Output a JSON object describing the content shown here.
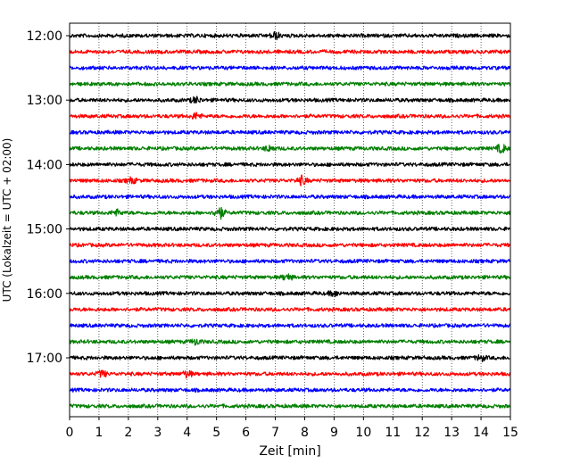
{
  "chart_data": {
    "type": "line",
    "title": "",
    "xlabel": "Zeit  [min]",
    "ylabel": "UTC (Lokalzeit = UTC + 02:00)",
    "xlim": [
      0,
      15
    ],
    "x_ticks": [
      "0",
      "1",
      "2",
      "3",
      "4",
      "5",
      "6",
      "7",
      "8",
      "9",
      "10",
      "11",
      "12",
      "13",
      "14",
      "15"
    ],
    "y_ticks": [
      "12:00",
      "13:00",
      "14:00",
      "15:00",
      "16:00",
      "17:00"
    ],
    "grid": "vertical-dotted",
    "trace_colors": [
      "#000000",
      "#ff0000",
      "#0000ff",
      "#007f00"
    ],
    "traces": [
      {
        "start": "12:00",
        "color": "#000000",
        "events": [
          {
            "t": 7.0,
            "amp": 1.6
          }
        ]
      },
      {
        "start": "12:15",
        "color": "#ff0000",
        "events": []
      },
      {
        "start": "12:30",
        "color": "#0000ff",
        "events": []
      },
      {
        "start": "12:45",
        "color": "#007f00",
        "events": []
      },
      {
        "start": "13:00",
        "color": "#000000",
        "events": [
          {
            "t": 4.3,
            "amp": 1.4
          }
        ]
      },
      {
        "start": "13:15",
        "color": "#ff0000",
        "events": [
          {
            "t": 4.3,
            "amp": 1.4
          }
        ]
      },
      {
        "start": "13:30",
        "color": "#0000ff",
        "events": []
      },
      {
        "start": "13:45",
        "color": "#007f00",
        "events": [
          {
            "t": 6.8,
            "amp": 1.3
          },
          {
            "t": 14.7,
            "amp": 2.0
          }
        ]
      },
      {
        "start": "14:00",
        "color": "#000000",
        "events": []
      },
      {
        "start": "14:15",
        "color": "#ff0000",
        "events": [
          {
            "t": 2.1,
            "amp": 1.3
          },
          {
            "t": 7.9,
            "amp": 2.0
          }
        ]
      },
      {
        "start": "14:30",
        "color": "#0000ff",
        "events": []
      },
      {
        "start": "14:45",
        "color": "#007f00",
        "events": [
          {
            "t": 1.6,
            "amp": 1.3
          },
          {
            "t": 5.1,
            "amp": 3.0
          }
        ]
      },
      {
        "start": "15:00",
        "color": "#000000",
        "events": []
      },
      {
        "start": "15:15",
        "color": "#ff0000",
        "events": []
      },
      {
        "start": "15:30",
        "color": "#0000ff",
        "events": []
      },
      {
        "start": "15:45",
        "color": "#007f00",
        "events": [
          {
            "t": 7.4,
            "amp": 1.4
          }
        ]
      },
      {
        "start": "16:00",
        "color": "#000000",
        "events": [
          {
            "t": 9.0,
            "amp": 1.2
          }
        ]
      },
      {
        "start": "16:15",
        "color": "#ff0000",
        "events": []
      },
      {
        "start": "16:30",
        "color": "#0000ff",
        "events": []
      },
      {
        "start": "16:45",
        "color": "#007f00",
        "events": [
          {
            "t": 4.3,
            "amp": 1.3
          }
        ]
      },
      {
        "start": "17:00",
        "color": "#000000",
        "events": [
          {
            "t": 14.0,
            "amp": 1.3
          }
        ]
      },
      {
        "start": "17:15",
        "color": "#ff0000",
        "events": [
          {
            "t": 1.1,
            "amp": 1.5
          },
          {
            "t": 4.0,
            "amp": 1.5
          }
        ]
      },
      {
        "start": "17:30",
        "color": "#0000ff",
        "events": []
      },
      {
        "start": "17:45",
        "color": "#007f00",
        "events": []
      }
    ]
  }
}
